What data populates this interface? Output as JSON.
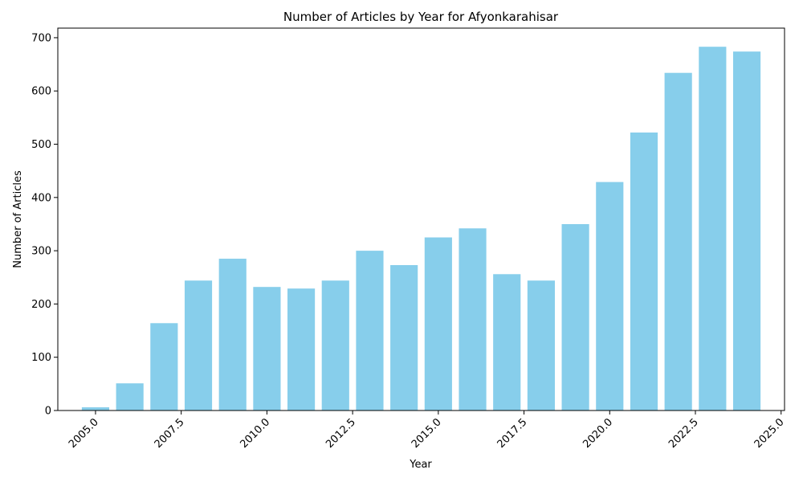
{
  "chart_data": {
    "type": "bar",
    "title": "Number of Articles by Year for Afyonkarahisar",
    "xlabel": "Year",
    "ylabel": "Number of Articles",
    "x": [
      2005,
      2006,
      2007,
      2008,
      2009,
      2010,
      2011,
      2012,
      2013,
      2014,
      2015,
      2016,
      2017,
      2018,
      2019,
      2020,
      2021,
      2022,
      2023,
      2024
    ],
    "values": [
      6,
      51,
      164,
      244,
      285,
      232,
      229,
      244,
      300,
      273,
      325,
      342,
      256,
      244,
      350,
      429,
      522,
      634,
      683,
      674
    ],
    "xlim": [
      2003.9,
      2025.1
    ],
    "ylim": [
      0,
      718
    ],
    "xticks": [
      2005,
      2007.5,
      2010,
      2012.5,
      2015,
      2017.5,
      2020,
      2022.5,
      2025
    ],
    "xtick_labels": [
      "2005.0",
      "2007.5",
      "2010.0",
      "2012.5",
      "2015.0",
      "2017.5",
      "2020.0",
      "2022.5",
      "2025.0"
    ],
    "yticks": [
      0,
      100,
      200,
      300,
      400,
      500,
      600,
      700
    ],
    "ytick_labels": [
      "0",
      "100",
      "200",
      "300",
      "400",
      "500",
      "600",
      "700"
    ],
    "bar_width": 0.8,
    "bar_color": "#87ceeb",
    "grid": false,
    "legend": "none"
  }
}
